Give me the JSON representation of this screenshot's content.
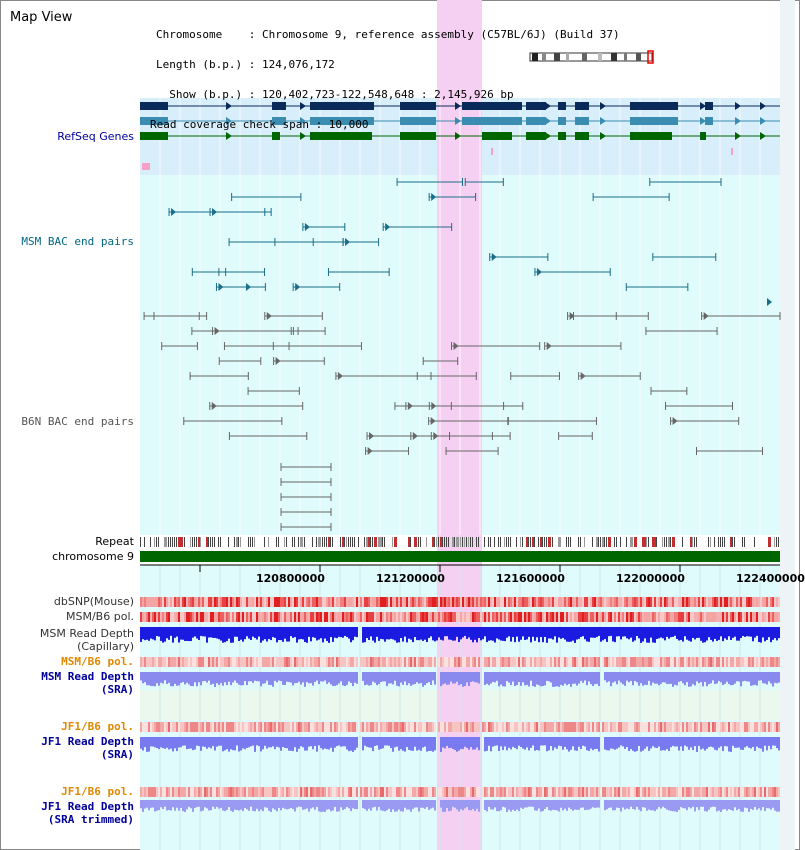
{
  "title": "Map View",
  "info": {
    "line1": "Chromosome    : Chromosome 9, reference assembly (C57BL/6J) (Build 37)",
    "line2": "Length (b.p.) : 124,076,172",
    "line3": "  Show (b.p.) : 120,402,723-122,548,648 : 2,145,926 bp",
    "line4": "Read coverage check span : 10,000"
  },
  "tracks": {
    "refseq": "RefSeq Genes",
    "msm_bac": "MSM BAC end pairs",
    "b6n_bac": "B6N BAC end pairs",
    "repeat": "Repeat",
    "chromosome": "chromosome 9",
    "dbsnp": "dbSNP(Mouse)",
    "msm_b6_pol_1": "MSM/B6 pol.",
    "msm_read_depth_cap_1": "MSM Read Depth",
    "msm_read_depth_cap_2": "(Capillary)",
    "msm_b6_pol_2": "MSM/B6 pol.",
    "msm_read_depth_sra_1": "MSM Read Depth",
    "msm_read_depth_sra_2": "(SRA)",
    "jf1_b6_pol_1": "JF1/B6 pol.",
    "jf1_read_depth_sra_1": "JF1 Read Depth",
    "jf1_read_depth_sra_2": "(SRA)",
    "jf1_b6_pol_2": "JF1/B6 pol.",
    "jf1_read_depth_trim_1": "JF1 Read Depth",
    "jf1_read_depth_trim_2": "(SRA trimmed)"
  },
  "axis": {
    "ticks": [
      "120800000",
      "121200000",
      "121600000",
      "122000000",
      "122400000"
    ]
  },
  "colors": {
    "refseq_bg": "#d8eefb",
    "track_bg": "#e0fbfb",
    "highlight": "#f6d0f2",
    "msm_bac_color": "#1a6e8a",
    "b6n_bac_color": "#666666",
    "refseq_dark": "#0a2a5a",
    "refseq_mid": "#3a8cb0",
    "refseq_green": "#006600",
    "chromosome_green": "#006600",
    "label_blue": "#000099",
    "label_teal": "#006680",
    "label_gray": "#555555",
    "label_orange": "#e08800"
  }
}
